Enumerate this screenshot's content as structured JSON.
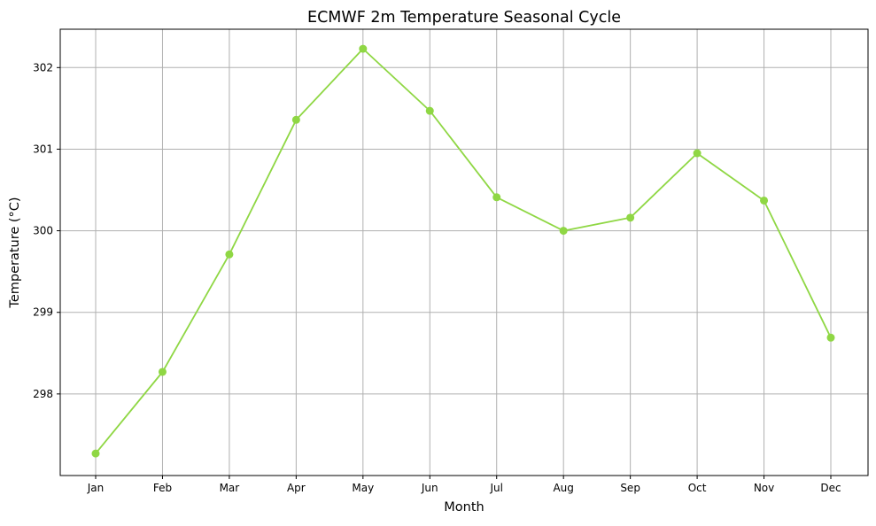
{
  "chart_data": {
    "type": "line",
    "title": "ECMWF 2m Temperature Seasonal Cycle",
    "xlabel": "Month",
    "ylabel": "Temperature (°C)",
    "categories": [
      "Jan",
      "Feb",
      "Mar",
      "Apr",
      "May",
      "Jun",
      "Jul",
      "Aug",
      "Sep",
      "Oct",
      "Nov",
      "Dec"
    ],
    "series": [
      {
        "values": [
          297.27,
          298.27,
          299.71,
          301.36,
          302.23,
          301.47,
          300.41,
          300.0,
          300.16,
          300.95,
          300.37,
          298.69
        ],
        "color": "#8fd744",
        "marker": "circle"
      }
    ],
    "ylim": [
      297.0,
      302.47
    ],
    "yticks": [
      298,
      299,
      300,
      301,
      302
    ],
    "grid": true,
    "legend": "none"
  }
}
